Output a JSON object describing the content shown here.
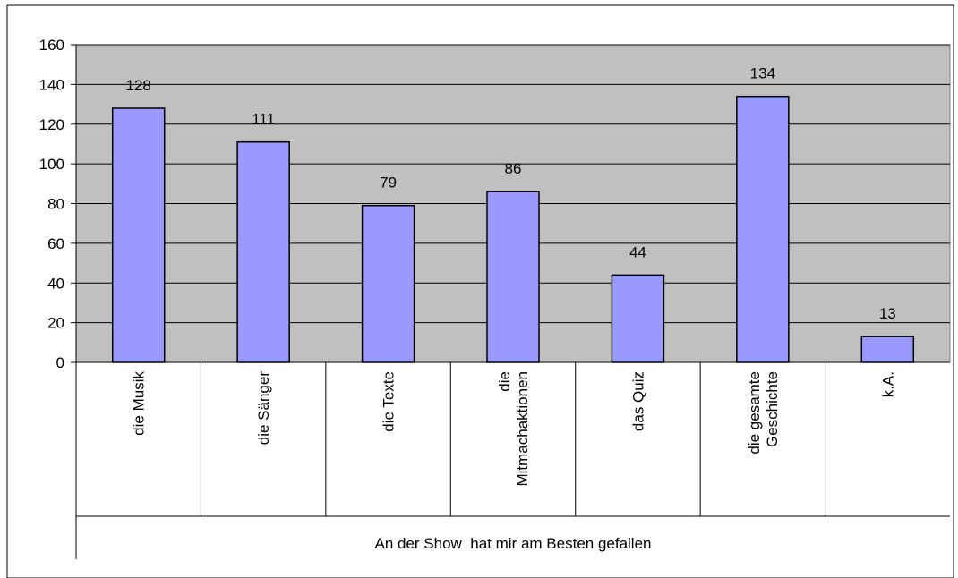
{
  "chart_data": {
    "type": "bar",
    "categories": [
      [
        "die Musik"
      ],
      [
        "die Sänger"
      ],
      [
        "die Texte"
      ],
      [
        "die",
        "Mitmachaktionen"
      ],
      [
        "das Quiz"
      ],
      [
        "die gesamte",
        "Geschichte"
      ],
      [
        "k.A."
      ]
    ],
    "values": [
      128,
      111,
      79,
      86,
      44,
      134,
      13
    ],
    "data_labels": [
      "128",
      "111",
      "79",
      "86",
      "44",
      "134",
      "13"
    ],
    "xlabel": "An der Show  hat mir am Besten gefallen",
    "ylabel": "",
    "ylim": [
      0,
      160
    ],
    "yticks": [
      0,
      20,
      40,
      60,
      80,
      100,
      120,
      140,
      160
    ],
    "grid": true,
    "legend": "none",
    "colors": {
      "bar": "#9999ff",
      "plot_bg": "#c0c0c0",
      "grid": "#000000",
      "axis": "#000000"
    }
  }
}
